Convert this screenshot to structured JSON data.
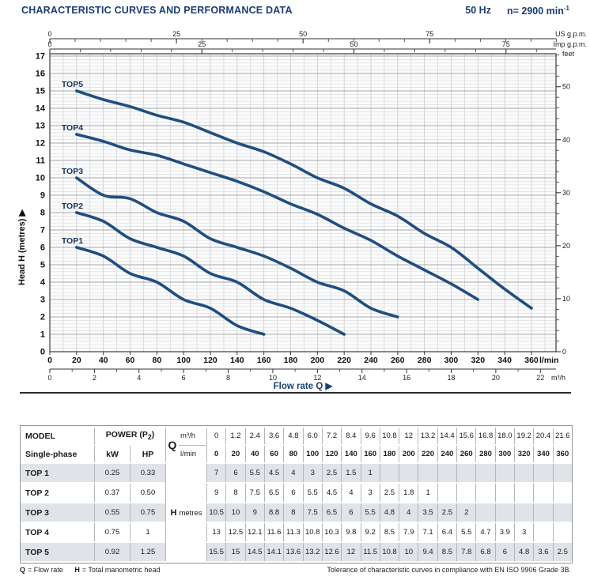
{
  "header": {
    "title": "CHARACTERISTIC CURVES AND PERFORMANCE DATA",
    "frequency": "50 Hz",
    "speed": "n= 2900 min",
    "speed_sup": "-1"
  },
  "chart_data": {
    "type": "line",
    "title": "Pump characteristic curves Head H vs Flow rate Q",
    "xlabel": "Flow rate Q",
    "ylabel": "Head H  (metres)",
    "curve_color": "#1f4e7f",
    "axis_lmin": {
      "unit": "l/min",
      "labeled": [
        0,
        20,
        40,
        60,
        80,
        100,
        120,
        140,
        160,
        180,
        200,
        220,
        240,
        260,
        280,
        300,
        320,
        340,
        360
      ]
    },
    "axis_m3h": {
      "unit": "m³/h",
      "labeled": [
        0,
        2,
        4,
        6,
        8,
        10,
        12,
        14,
        16,
        18,
        20,
        22
      ],
      "minor_step": 1
    },
    "axis_us_gpm": {
      "unit": "US g.p.m.",
      "labeled": [
        0,
        25,
        50,
        75
      ],
      "minor_step": 5
    },
    "axis_imp_gpm": {
      "unit": "Imp g.p.m.",
      "labeled": [
        0,
        25,
        50,
        75
      ],
      "minor_step": 5
    },
    "axis_metres": {
      "unit": "metres",
      "labeled": [
        0,
        1,
        2,
        3,
        4,
        5,
        6,
        7,
        8,
        9,
        10,
        11,
        12,
        13,
        14,
        15,
        16,
        17
      ]
    },
    "axis_feet": {
      "unit": "feet",
      "labeled": [
        0,
        10,
        20,
        30,
        40,
        50
      ],
      "minor_step": 2
    },
    "series": [
      {
        "name": "TOP1",
        "q_start": 20,
        "q_step": 20,
        "h": [
          6,
          5.5,
          4.5,
          4,
          3,
          2.5,
          1.5,
          1
        ]
      },
      {
        "name": "TOP2",
        "q_start": 20,
        "q_step": 20,
        "h": [
          8,
          7.5,
          6.5,
          6,
          5.5,
          4.5,
          4,
          3,
          2.5,
          1.8,
          1
        ]
      },
      {
        "name": "TOP3",
        "q_start": 20,
        "q_step": 20,
        "h": [
          10,
          9,
          8.8,
          8,
          7.5,
          6.5,
          6,
          5.5,
          4.8,
          4,
          3.5,
          2.5,
          2
        ]
      },
      {
        "name": "TOP4",
        "q_start": 20,
        "q_step": 20,
        "h": [
          12.5,
          12.1,
          11.6,
          11.3,
          10.8,
          10.3,
          9.8,
          9.2,
          8.5,
          7.9,
          7.1,
          6.4,
          5.5,
          4.7,
          3.9,
          3
        ]
      },
      {
        "name": "TOP5",
        "q_start": 20,
        "q_step": 20,
        "h": [
          15,
          14.5,
          14.1,
          13.6,
          13.2,
          12.6,
          12,
          11.5,
          10.8,
          10,
          9.4,
          8.5,
          7.8,
          6.8,
          6,
          4.8,
          3.6,
          2.5
        ]
      }
    ]
  },
  "table": {
    "model_header": "MODEL",
    "model_subheader": "Single-phase",
    "power": {
      "pre": "POWER (P",
      "sub": "2",
      "post": ")"
    },
    "kw_header": "kW",
    "hp_header": "HP",
    "q_symbol": "Q",
    "unit_m3h": "m³/h",
    "unit_lmin": "l/min",
    "h_symbol": "H",
    "h_unit": "metres",
    "flow_m3h": [
      "0",
      "1.2",
      "2.4",
      "3.6",
      "4.8",
      "6.0",
      "7.2",
      "8.4",
      "9.6",
      "10.8",
      "12",
      "13.2",
      "14.4",
      "15.6",
      "16.8",
      "18.0",
      "19.2",
      "20.4",
      "21.6"
    ],
    "flow_lmin": [
      "0",
      "20",
      "40",
      "60",
      "80",
      "100",
      "120",
      "140",
      "160",
      "180",
      "200",
      "220",
      "240",
      "260",
      "280",
      "300",
      "320",
      "340",
      "360"
    ],
    "rows": [
      {
        "model": "TOP 1",
        "kw": "0.25",
        "hp": "0.33",
        "h": [
          "7",
          "6",
          "5.5",
          "4.5",
          "4",
          "3",
          "2.5",
          "1.5",
          "1",
          "",
          "",
          "",
          "",
          "",
          "",
          "",
          "",
          "",
          ""
        ]
      },
      {
        "model": "TOP 2",
        "kw": "0.37",
        "hp": "0.50",
        "h": [
          "9",
          "8",
          "7.5",
          "6.5",
          "6",
          "5.5",
          "4.5",
          "4",
          "3",
          "2.5",
          "1.8",
          "1",
          "",
          "",
          "",
          "",
          "",
          "",
          ""
        ]
      },
      {
        "model": "TOP 3",
        "kw": "0.55",
        "hp": "0.75",
        "h": [
          "10.5",
          "10",
          "9",
          "8.8",
          "8",
          "7.5",
          "6.5",
          "6",
          "5.5",
          "4.8",
          "4",
          "3.5",
          "2.5",
          "2",
          "",
          "",
          "",
          "",
          ""
        ]
      },
      {
        "model": "TOP 4",
        "kw": "0.75",
        "hp": "1",
        "h": [
          "13",
          "12.5",
          "12.1",
          "11.6",
          "11.3",
          "10.8",
          "10.3",
          "9.8",
          "9.2",
          "8.5",
          "7.9",
          "7.1",
          "6.4",
          "5.5",
          "4.7",
          "3.9",
          "3",
          "",
          ""
        ]
      },
      {
        "model": "TOP 5",
        "kw": "0.92",
        "hp": "1.25",
        "h": [
          "15.5",
          "15",
          "14.5",
          "14.1",
          "13.6",
          "13.2",
          "12.6",
          "12",
          "11.5",
          "10.8",
          "10",
          "9.4",
          "8.5",
          "7.8",
          "6.8",
          "6",
          "4.8",
          "3.6",
          "2.5"
        ]
      }
    ]
  },
  "footer": {
    "q_sym": "Q",
    "q_def": "= Flow rate",
    "h_sym": "H",
    "h_def": "= Total manometric head",
    "tolerance": "Tolerance of characteristic curves in compliance with EN ISO 9906 Grade 3B."
  }
}
